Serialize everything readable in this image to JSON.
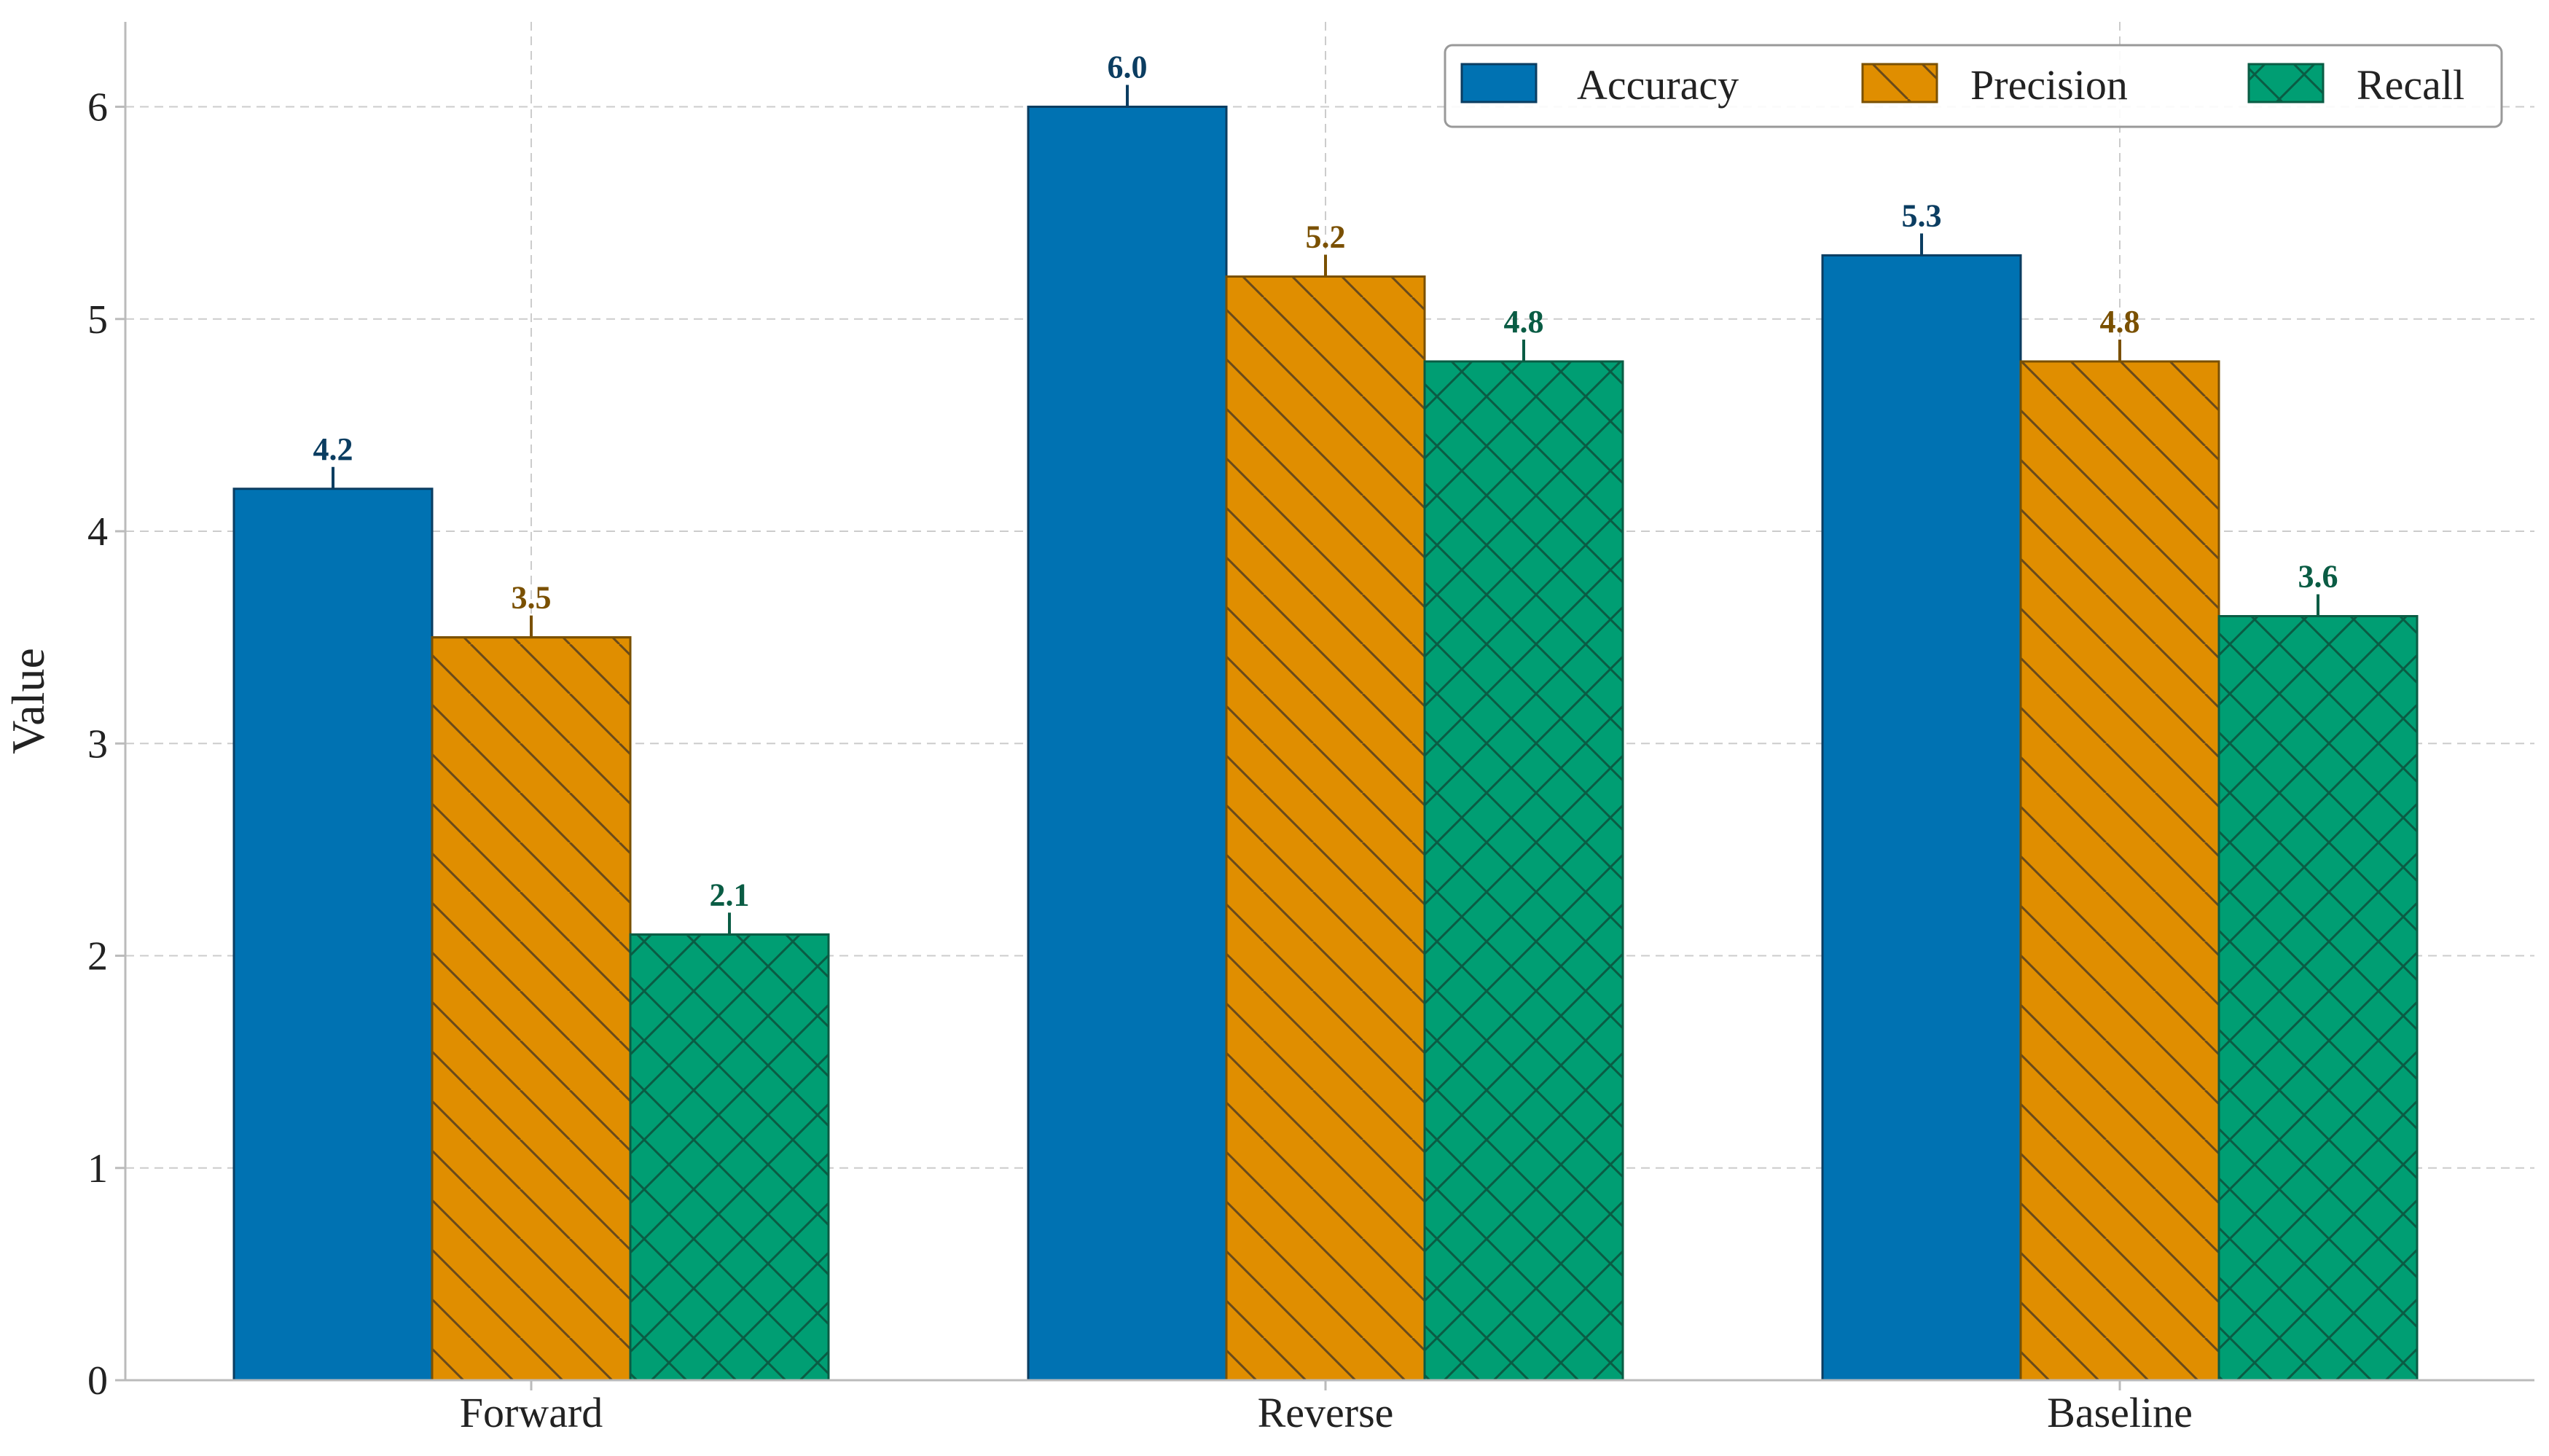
{
  "chart_data": {
    "type": "bar",
    "title": "",
    "xlabel": "",
    "ylabel": "Value",
    "ylim": [
      0,
      6.4
    ],
    "yticks": [
      0,
      1,
      2,
      3,
      4,
      5,
      6
    ],
    "grid": true,
    "legend_position": "top-right",
    "categories": [
      "Forward",
      "Reverse",
      "Baseline"
    ],
    "series": [
      {
        "name": "Accuracy",
        "values": [
          4.2,
          6.0,
          5.3
        ],
        "color": "#0072b2",
        "edge": "#0b3d61",
        "label_color": "#0b3d61",
        "hatch": "none"
      },
      {
        "name": "Precision",
        "values": [
          3.5,
          5.2,
          4.8
        ],
        "color": "#e08e00",
        "edge": "#7a5000",
        "label_color": "#7a5000",
        "hatch": "diagonal"
      },
      {
        "name": "Recall",
        "values": [
          2.1,
          4.8,
          3.6
        ],
        "color": "#009e73",
        "edge": "#0a5c44",
        "label_color": "#0a5c44",
        "hatch": "cross"
      }
    ],
    "value_labels": [
      [
        "4.2",
        "6.0",
        "5.3"
      ],
      [
        "3.5",
        "5.2",
        "4.8"
      ],
      [
        "2.1",
        "4.8",
        "3.6"
      ]
    ]
  }
}
